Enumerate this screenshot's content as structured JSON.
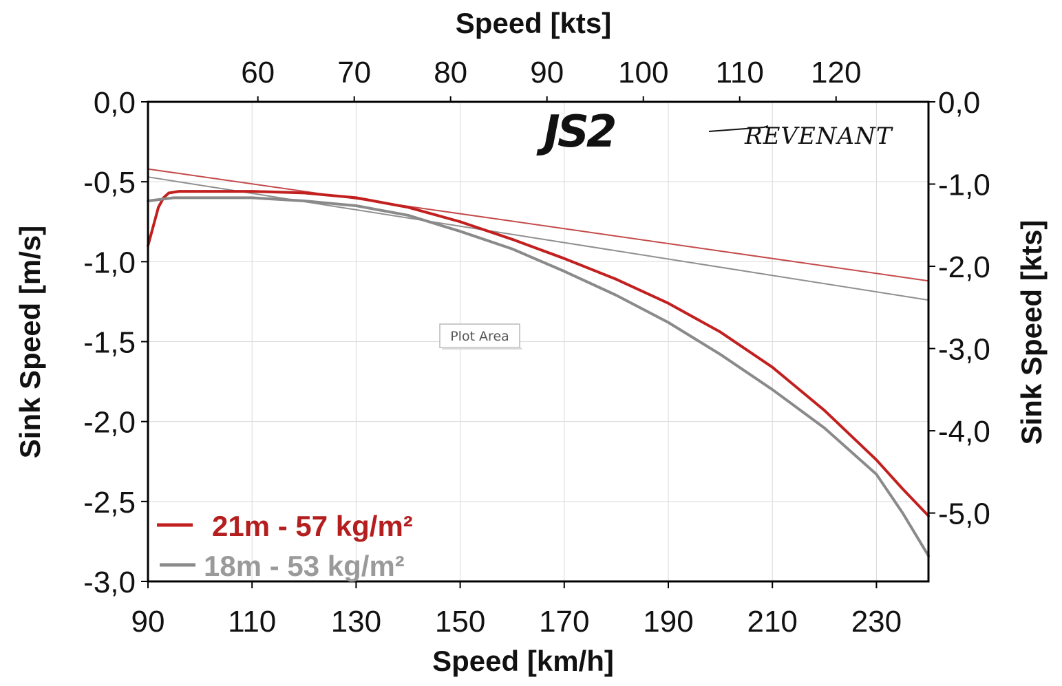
{
  "chart_data": {
    "type": "line",
    "title": "",
    "xlabel_bottom": "Speed [km/h]",
    "xlabel_top": "Speed [kts]",
    "ylabel_left": "Sink Speed [m/s]",
    "ylabel_right": "Sink Speed [kts]",
    "x_bottom": {
      "lim": [
        90,
        240
      ],
      "ticks": [
        90,
        110,
        130,
        150,
        170,
        190,
        210,
        230
      ],
      "tick_labels": [
        "90",
        "110",
        "130",
        "150",
        "170",
        "190",
        "210",
        "230"
      ]
    },
    "x_top": {
      "unit": "kts",
      "ticks": [
        60,
        70,
        80,
        90,
        100,
        110,
        120
      ],
      "tick_labels": [
        "60",
        "70",
        "80",
        "90",
        "100",
        "110",
        "120"
      ]
    },
    "y_left": {
      "lim": [
        -3.0,
        0.0
      ],
      "ticks": [
        0.0,
        -0.5,
        -1.0,
        -1.5,
        -2.0,
        -2.5,
        -3.0
      ],
      "tick_labels": [
        "0,0",
        "-0,5",
        "-1,0",
        "-1,5",
        "-2,0",
        "-2,5",
        "-3,0"
      ]
    },
    "y_right": {
      "unit": "kts",
      "ticks": [
        0.0,
        -1.0,
        -2.0,
        -3.0,
        -4.0,
        -5.0
      ],
      "tick_labels": [
        "0,0",
        "-1,0",
        "-2,0",
        "-3,0",
        "-4,0",
        "-5,0"
      ]
    },
    "grid": true,
    "legend_position": "bottom-left",
    "series": [
      {
        "name": "21m - 57 kg/m²",
        "color": "#c21f1f",
        "x": [
          90,
          91,
          92,
          93,
          94,
          96,
          100,
          110,
          120,
          130,
          140,
          150,
          160,
          170,
          180,
          190,
          200,
          210,
          220,
          230,
          235,
          240
        ],
        "y": [
          -0.9,
          -0.78,
          -0.66,
          -0.6,
          -0.57,
          -0.56,
          -0.56,
          -0.56,
          -0.57,
          -0.6,
          -0.66,
          -0.75,
          -0.86,
          -0.98,
          -1.11,
          -1.26,
          -1.44,
          -1.66,
          -1.93,
          -2.24,
          -2.42,
          -2.59
        ]
      },
      {
        "name": "18m - 53 kg/m²",
        "color": "#8a8a8a",
        "x": [
          90,
          95,
          100,
          110,
          120,
          130,
          140,
          150,
          160,
          170,
          180,
          190,
          200,
          210,
          220,
          230,
          235,
          240
        ],
        "y": [
          -0.62,
          -0.6,
          -0.6,
          -0.6,
          -0.62,
          -0.65,
          -0.71,
          -0.81,
          -0.92,
          -1.06,
          -1.21,
          -1.38,
          -1.58,
          -1.8,
          -2.04,
          -2.33,
          -2.57,
          -2.84
        ]
      }
    ],
    "tangent_lines": [
      {
        "color": "#c44a4a",
        "x": [
          90,
          240
        ],
        "y": [
          -0.42,
          -1.12
        ]
      },
      {
        "color": "#8f8f8f",
        "x": [
          90,
          240
        ],
        "y": [
          -0.47,
          -1.24
        ]
      }
    ]
  },
  "logo": {
    "mark": "JS2",
    "word": "REVENANT",
    "mark_color": "#111111",
    "accent_color": "#b41f24"
  },
  "tooltip": {
    "text": "Plot Area"
  }
}
